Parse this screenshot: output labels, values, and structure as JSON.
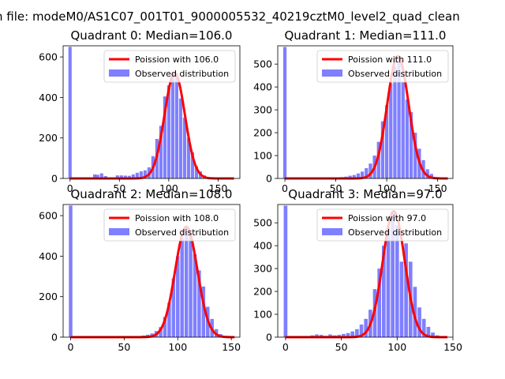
{
  "suptitle": "n file: modeM0/AS1C07_001T01_9000005532_40219cztM0_level2_quad_clean",
  "colors": {
    "line": "#ff0000",
    "bars": "#0000ff",
    "bar_alpha": 0.5,
    "axes": "#000000"
  },
  "chart_data": [
    {
      "type": "bar",
      "title": "Quadrant 0: Median=106.0",
      "xlim": [
        -7,
        172
      ],
      "ylim": [
        0,
        655
      ],
      "xticks": [
        0,
        50,
        100,
        150
      ],
      "yticks": [
        0,
        200,
        400,
        600
      ],
      "legend_position": "top-right",
      "legend": [
        "Poission with 106.0",
        "Observed distribution"
      ],
      "mean": 106.0,
      "peak": 520,
      "hist_bin_width": 3.3,
      "hist_x": [
        0,
        12,
        25,
        28,
        32,
        36,
        48,
        52,
        56,
        60,
        64,
        68,
        72,
        76,
        80,
        84,
        88,
        92,
        96,
        100,
        104,
        108,
        112,
        116,
        120,
        124,
        128,
        132,
        136,
        140
      ],
      "hist_y": [
        650,
        5,
        20,
        18,
        25,
        12,
        15,
        15,
        14,
        13,
        20,
        28,
        35,
        40,
        55,
        110,
        195,
        260,
        405,
        460,
        520,
        500,
        395,
        300,
        200,
        130,
        60,
        35,
        15,
        5
      ]
    },
    {
      "type": "bar",
      "title": "Quadrant 1: Median=111.0",
      "xlim": [
        -7,
        165
      ],
      "ylim": [
        0,
        580
      ],
      "xticks": [
        0,
        50,
        100,
        150
      ],
      "yticks": [
        0,
        100,
        200,
        300,
        400,
        500
      ],
      "legend_position": "top-right",
      "legend": [
        "Poission with 111.0",
        "Observed distribution"
      ],
      "mean": 111.0,
      "peak": 535,
      "hist_bin_width": 3.3,
      "hist_x": [
        0,
        36,
        40,
        52,
        56,
        60,
        64,
        68,
        72,
        76,
        80,
        84,
        88,
        92,
        96,
        100,
        104,
        108,
        112,
        116,
        120,
        124,
        128,
        132,
        136,
        140,
        144,
        148
      ],
      "hist_y": [
        575,
        3,
        5,
        5,
        6,
        8,
        12,
        15,
        22,
        30,
        45,
        65,
        100,
        160,
        250,
        320,
        415,
        490,
        535,
        420,
        345,
        290,
        200,
        130,
        80,
        40,
        20,
        6
      ]
    },
    {
      "type": "bar",
      "title": "Quadrant 2: Median=108.0",
      "xlim": [
        -7,
        158
      ],
      "ylim": [
        0,
        655
      ],
      "xticks": [
        0,
        50,
        100,
        150
      ],
      "yticks": [
        0,
        200,
        400,
        600
      ],
      "legend_position": "top-right",
      "legend": [
        "Poission with 108.0",
        "Observed distribution"
      ],
      "mean": 108.0,
      "peak": 545,
      "hist_bin_width": 3.3,
      "hist_x": [
        0,
        60,
        64,
        68,
        72,
        76,
        80,
        84,
        88,
        92,
        96,
        100,
        104,
        108,
        112,
        116,
        120,
        124,
        128,
        132,
        136,
        140,
        144
      ],
      "hist_y": [
        650,
        5,
        6,
        8,
        12,
        18,
        30,
        50,
        100,
        170,
        290,
        400,
        490,
        545,
        500,
        410,
        330,
        250,
        150,
        90,
        40,
        15,
        5
      ]
    },
    {
      "type": "bar",
      "title": "Quadrant 3: Median=97.0",
      "xlim": [
        -7,
        150
      ],
      "ylim": [
        0,
        580
      ],
      "xticks": [
        0,
        50,
        100,
        150
      ],
      "yticks": [
        0,
        100,
        200,
        300,
        400,
        500
      ],
      "legend_position": "top-right",
      "legend": [
        "Poission with 97.0",
        "Observed distribution"
      ],
      "mean": 97.0,
      "peak": 550,
      "hist_bin_width": 3.3,
      "hist_x": [
        0,
        24,
        28,
        32,
        36,
        40,
        44,
        48,
        52,
        56,
        60,
        64,
        68,
        72,
        76,
        80,
        84,
        88,
        92,
        96,
        100,
        104,
        108,
        112,
        116,
        120,
        124,
        128,
        132,
        136
      ],
      "hist_y": [
        575,
        8,
        12,
        10,
        6,
        12,
        8,
        10,
        14,
        18,
        25,
        35,
        55,
        80,
        120,
        210,
        300,
        400,
        480,
        550,
        490,
        330,
        410,
        330,
        220,
        130,
        80,
        45,
        20,
        8
      ]
    }
  ]
}
